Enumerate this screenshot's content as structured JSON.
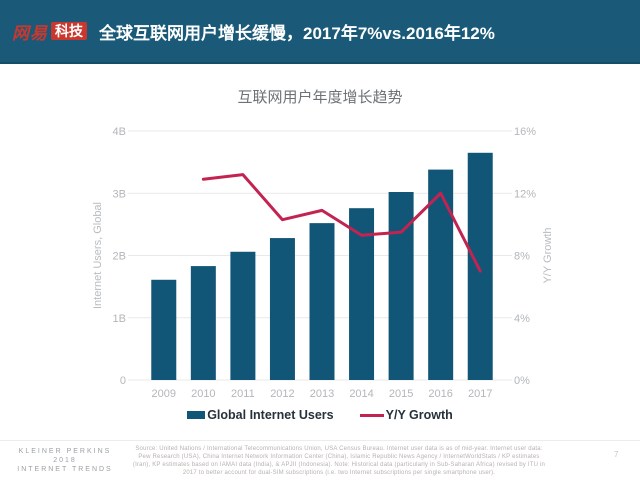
{
  "header": {
    "logo_brand": "网易",
    "logo_sub": "科技",
    "title": "全球互联网用户增长缓慢，2017年7%vs.2016年12%"
  },
  "chart": {
    "title": "互联网用户年度增长趋势",
    "left_axis": {
      "title": "Internet Users, Global",
      "ticks": [
        "0",
        "1B",
        "2B",
        "3B",
        "4B"
      ]
    },
    "right_axis": {
      "title": "Y/Y Growth",
      "ticks": [
        "0%",
        "4%",
        "8%",
        "12%",
        "16%"
      ]
    },
    "legend": [
      {
        "label": "Global Internet Users",
        "type": "bar",
        "color": "#125677"
      },
      {
        "label": "Y/Y Growth",
        "type": "line",
        "color": "#c22351"
      }
    ]
  },
  "chart_data": {
    "type": "bar+line",
    "title": "互联网用户年度增长趋势",
    "categories": [
      "2009",
      "2010",
      "2011",
      "2012",
      "2013",
      "2014",
      "2015",
      "2016",
      "2017"
    ],
    "series": [
      {
        "name": "Global Internet Users",
        "type": "bar",
        "axis": "left",
        "unit": "billions",
        "values": [
          1.61,
          1.83,
          2.06,
          2.28,
          2.52,
          2.76,
          3.02,
          3.38,
          3.65
        ]
      },
      {
        "name": "Y/Y Growth",
        "type": "line",
        "axis": "right",
        "unit": "%",
        "values": [
          null,
          12.9,
          13.2,
          10.3,
          10.9,
          9.3,
          9.5,
          12.0,
          7.0
        ]
      }
    ],
    "left_ylabel": "Internet Users, Global",
    "right_ylabel": "Y/Y Growth",
    "left_ylim": [
      0,
      4
    ],
    "right_ylim": [
      0,
      16
    ],
    "grid": true,
    "legend_position": "bottom"
  },
  "footer": {
    "brand_lines": [
      "KLEINER PERKINS",
      "2018",
      "INTERNET TRENDS"
    ],
    "source": "Source: United Nations / International Telecommunications Union, USA Census Bureau. Internet user data is as of mid-year. Internet user data: Pew Research (USA), China Internet Network Information Center (China), Islamic Republic News Agency / InternetWorldStats / KP estimates (Iran), KP estimates based on IAMAI data (India), & APJII (Indonesia). Note: Historical data (particularly in Sub-Saharan Africa) revised by ITU in 2017 to better account for dual-SIM subscriptions (i.e. two Internet subscriptions per single smartphone user).",
    "page_number": "7"
  },
  "colors": {
    "header_bg": "#1a5a78",
    "logo_red": "#c8382f",
    "header_text": "#ffffff",
    "bar": "#125677",
    "line": "#c22351",
    "grid": "#e9e9e9",
    "tick": "#b3b6ba",
    "axis_title": "#b9bcc0",
    "chart_title": "#6e7277",
    "legend_text": "#26313c",
    "footer_brand": "#9ba0a4",
    "source_gray": "#b6b3ae",
    "page_num": "#c5c5c5",
    "divider": "#ececec"
  }
}
